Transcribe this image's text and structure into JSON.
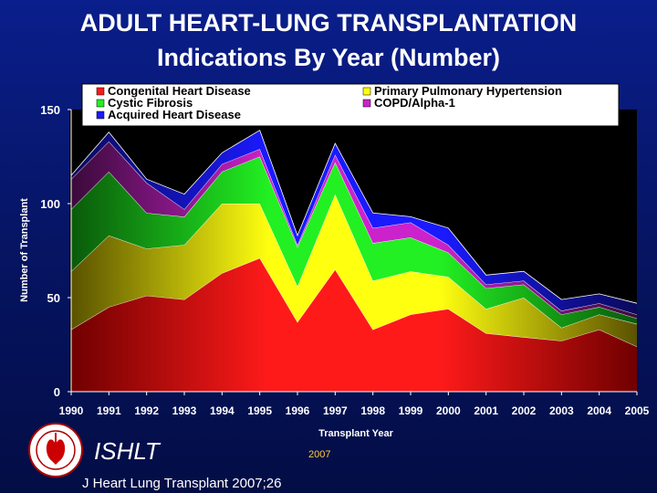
{
  "title_line1": "ADULT HEART-LUNG TRANSPLANTATION",
  "title_line2": "Indications By Year (Number)",
  "org": "ISHLT",
  "year_note": "2007",
  "citation": "J Heart Lung Transplant 2007;26",
  "chart_data": {
    "type": "area",
    "stacked": true,
    "xlabel": "Transplant Year",
    "ylabel": "Number of Transplant",
    "ylim": [
      0,
      150
    ],
    "yticks": [
      "0",
      "50",
      "100",
      "150"
    ],
    "categories": [
      "1990",
      "1991",
      "1992",
      "1993",
      "1994",
      "1995",
      "1996",
      "1997",
      "1998",
      "1999",
      "2000",
      "2001",
      "2002",
      "2003",
      "2004",
      "2005"
    ],
    "legend_position": "top",
    "series": [
      {
        "name": "Congenital Heart Disease",
        "color": "#ff1a1a",
        "dark": "#700000",
        "values": [
          33,
          45,
          51,
          49,
          63,
          71,
          37,
          65,
          33,
          41,
          44,
          31,
          29,
          27,
          33,
          24
        ]
      },
      {
        "name": "Primary Pulmonary Hypertension",
        "color": "#ffff10",
        "dark": "#5a5200",
        "values": [
          31,
          38,
          25,
          29,
          37,
          29,
          19,
          40,
          26,
          23,
          17,
          13,
          21,
          7,
          8,
          12
        ]
      },
      {
        "name": "Cystic Fibrosis",
        "color": "#22f022",
        "dark": "#0a5a0a",
        "values": [
          33,
          34,
          19,
          15,
          17,
          25,
          21,
          17,
          20,
          18,
          13,
          11,
          7,
          7,
          4,
          3
        ]
      },
      {
        "name": "COPD/Alpha-1",
        "color": "#cc22cc",
        "dark": "#3a0a3a",
        "values": [
          16,
          16,
          16,
          4,
          4,
          4,
          1,
          4,
          8,
          8,
          4,
          2,
          2,
          2,
          2,
          2
        ]
      },
      {
        "name": "Acquired Heart Disease",
        "color": "#1a1aff",
        "dark": "#0a0a5a",
        "values": [
          2,
          5,
          2,
          8,
          6,
          10,
          5,
          6,
          8,
          3,
          9,
          5,
          5,
          6,
          5,
          6
        ]
      }
    ]
  }
}
